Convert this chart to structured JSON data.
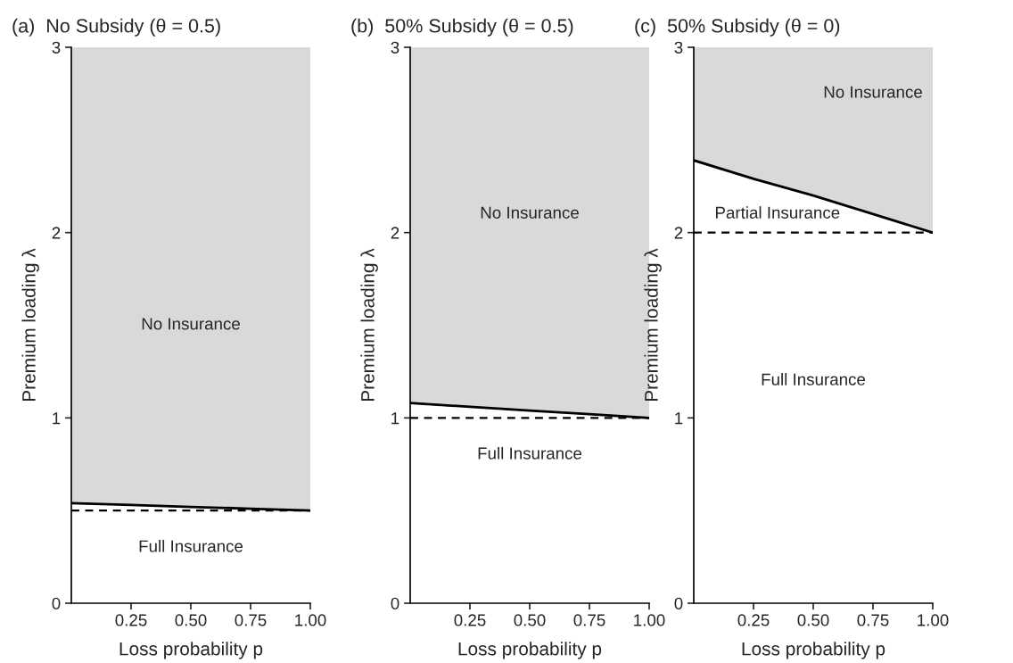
{
  "chart_data": [
    {
      "type": "line",
      "title": "(a)  No Subsidy (θ = 0.5)",
      "xlabel": "Loss probability p",
      "ylabel": "Premium loading λ",
      "x": [
        0,
        0.25,
        0.5,
        0.75,
        1
      ],
      "series": [
        {
          "color": "#000000",
          "values": [
            0.54,
            0.53,
            0.52,
            0.51,
            0.5
          ],
          "lower": [
            0.54,
            0.53,
            0.52,
            0.51,
            0.5
          ],
          "upper": [
            3,
            3,
            3,
            3,
            3
          ]
        }
      ],
      "ref_lines": [
        {
          "axis": "y",
          "value": 0.5,
          "color": "#000000",
          "line_style": "dashed"
        }
      ],
      "annotations": [
        "No Insurance",
        "Full Insurance"
      ],
      "xlim": [
        0,
        1
      ],
      "ylim": [
        0,
        3
      ],
      "xticks": [
        {
          "value": 0.25,
          "label": "0.25"
        },
        {
          "value": 0.5,
          "label": "0.50"
        },
        {
          "value": 0.75,
          "label": "0.75"
        },
        {
          "value": 1,
          "label": "1.00"
        }
      ],
      "yticks": [
        0,
        1,
        2,
        3
      ],
      "grid": false,
      "legend": false
    },
    {
      "type": "line",
      "title": "(b)  50% Subsidy (θ = 0.5)",
      "xlabel": "Loss probability p",
      "ylabel": "Premium loading λ",
      "x": [
        0,
        0.25,
        0.5,
        0.75,
        1
      ],
      "series": [
        {
          "color": "#000000",
          "values": [
            1.08,
            1.06,
            1.04,
            1.02,
            1.0
          ],
          "lower": [
            1.08,
            1.06,
            1.04,
            1.02,
            1.0
          ],
          "upper": [
            3,
            3,
            3,
            3,
            3
          ]
        }
      ],
      "ref_lines": [
        {
          "axis": "y",
          "value": 1,
          "color": "#000000",
          "line_style": "dashed"
        }
      ],
      "annotations": [
        "No Insurance",
        "Full Insurance"
      ],
      "xlim": [
        0,
        1
      ],
      "ylim": [
        0,
        3
      ],
      "xticks": [
        {
          "value": 0.25,
          "label": "0.25"
        },
        {
          "value": 0.5,
          "label": "0.50"
        },
        {
          "value": 0.75,
          "label": "0.75"
        },
        {
          "value": 1,
          "label": "1.00"
        }
      ],
      "yticks": [
        0,
        1,
        2,
        3
      ],
      "grid": false,
      "legend": false
    },
    {
      "type": "line",
      "title": "(c)  50% Subsidy (θ = 0)",
      "xlabel": "Loss probability p",
      "ylabel": "Premium loading λ",
      "x": [
        0,
        0.25,
        0.5,
        0.75,
        1
      ],
      "series": [
        {
          "color": "#000000",
          "values": [
            2.39,
            2.29,
            2.2,
            2.1,
            2.0
          ],
          "lower": [
            2.39,
            2.29,
            2.2,
            2.1,
            2.0
          ],
          "upper": [
            3,
            3,
            3,
            3,
            3
          ]
        }
      ],
      "ref_lines": [
        {
          "axis": "y",
          "value": 2,
          "color": "#000000",
          "line_style": "dashed"
        }
      ],
      "annotations": [
        "No Insurance",
        "Partial Insurance",
        "Full Insurance"
      ],
      "xlim": [
        0,
        1
      ],
      "ylim": [
        0,
        3
      ],
      "xticks": [
        {
          "value": 0.25,
          "label": "0.25"
        },
        {
          "value": 0.5,
          "label": "0.50"
        },
        {
          "value": 0.75,
          "label": "0.75"
        },
        {
          "value": 1,
          "label": "1.00"
        }
      ],
      "yticks": [
        0,
        1,
        2,
        3
      ],
      "grid": false,
      "legend": false
    }
  ]
}
